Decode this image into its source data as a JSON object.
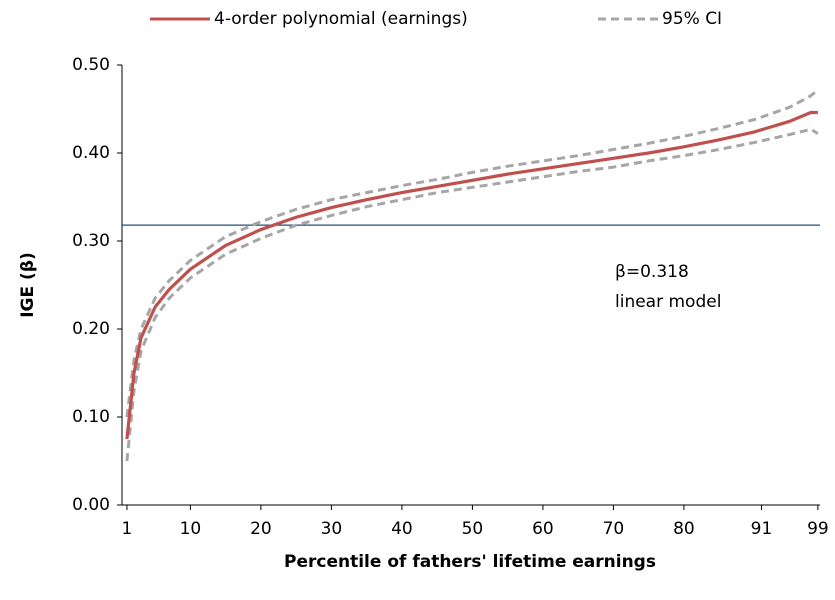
{
  "chart_data": {
    "type": "line",
    "x_label": "Percentile of fathers' lifetime earnings",
    "y_label": "IGE (β)",
    "x": [
      1,
      2,
      3,
      5,
      7,
      10,
      15,
      20,
      25,
      30,
      35,
      40,
      45,
      50,
      55,
      60,
      65,
      70,
      75,
      80,
      85,
      90,
      95,
      98,
      99
    ],
    "series": [
      {
        "name": "4-order polynomial (earnings)",
        "color": "#c0504d",
        "dash": false,
        "values": [
          0.075,
          0.15,
          0.19,
          0.225,
          0.245,
          0.268,
          0.295,
          0.313,
          0.327,
          0.338,
          0.347,
          0.355,
          0.362,
          0.369,
          0.376,
          0.382,
          0.388,
          0.394,
          0.4,
          0.407,
          0.415,
          0.424,
          0.436,
          0.446,
          0.446
        ]
      },
      {
        "name": "95% CI",
        "color": "#a6a6a6",
        "dash": true,
        "values": [
          0.1,
          0.165,
          0.2,
          0.235,
          0.255,
          0.278,
          0.305,
          0.322,
          0.336,
          0.347,
          0.355,
          0.363,
          0.37,
          0.378,
          0.385,
          0.391,
          0.397,
          0.404,
          0.411,
          0.419,
          0.428,
          0.438,
          0.452,
          0.465,
          0.472
        ]
      },
      {
        "color": "#a6a6a6",
        "dash": true,
        "values": [
          0.05,
          0.13,
          0.175,
          0.213,
          0.235,
          0.258,
          0.285,
          0.303,
          0.318,
          0.329,
          0.339,
          0.347,
          0.355,
          0.361,
          0.367,
          0.373,
          0.379,
          0.384,
          0.391,
          0.397,
          0.404,
          0.412,
          0.421,
          0.427,
          0.422
        ]
      }
    ],
    "reference_line": {
      "value": 0.318,
      "color": "#1f4e79"
    },
    "annotations": [
      "β=0.318",
      "linear model"
    ],
    "xlim": [
      0.3,
      99.3
    ],
    "xticks": [
      1,
      10,
      20,
      30,
      40,
      50,
      60,
      70,
      80,
      91,
      99
    ],
    "ylim": [
      0,
      0.5
    ],
    "yticks": [
      {
        "value": 0,
        "label": "0.00"
      },
      {
        "value": 0.1,
        "label": "0.10"
      },
      {
        "value": 0.2,
        "label": "0.20"
      },
      {
        "value": 0.3,
        "label": "0.30"
      },
      {
        "value": 0.4,
        "label": "0.40"
      },
      {
        "value": 0.5,
        "label": "0.50"
      }
    ],
    "grid": false,
    "legend": "top"
  }
}
